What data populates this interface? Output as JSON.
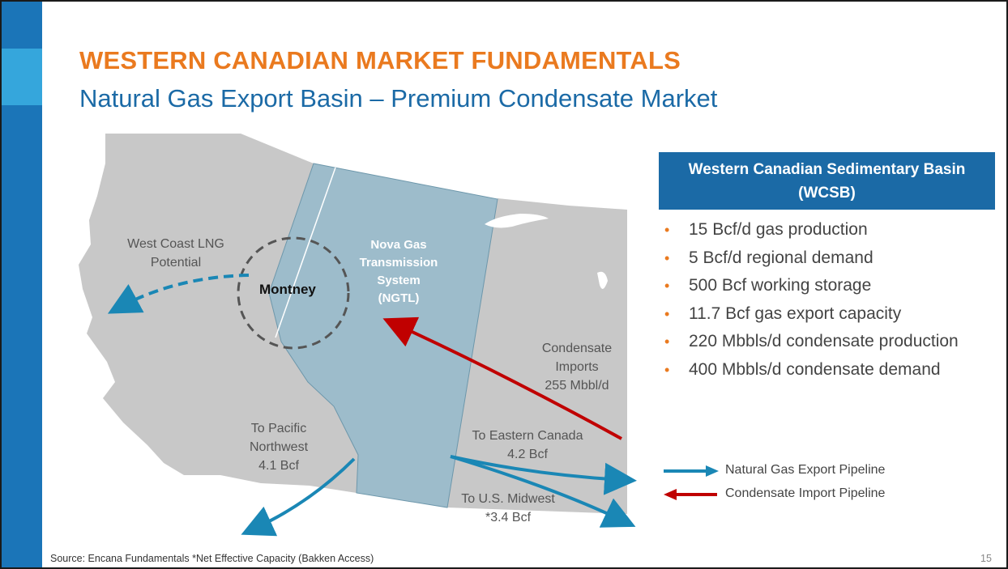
{
  "slide": {
    "title": "WESTERN CANADIAN MARKET FUNDAMENTALS",
    "subtitle": "Natural Gas Export Basin – Premium Condensate Market",
    "page_number": "15",
    "source_note": "Source: Encana Fundamentals *Net Effective Capacity (Bakken Access)"
  },
  "colors": {
    "brand_blue": "#1b6aa6",
    "accent_orange": "#ea7a1f",
    "export_arrow": "#1a87b5",
    "import_arrow": "#c00000",
    "map_gray": "#c8c8c8",
    "alberta_fill": "#9dbccb"
  },
  "map": {
    "west_coast_lng": [
      "West Coast LNG",
      "Potential"
    ],
    "montney": "Montney",
    "ngtl": [
      "Nova Gas",
      "Transmission",
      "System",
      "(NGTL)"
    ],
    "condensate_imports": [
      "Condensate",
      "Imports",
      "255 Mbbl/d"
    ],
    "pacific_northwest": [
      "To Pacific",
      "Northwest",
      "4.1 Bcf"
    ],
    "eastern_canada": [
      "To Eastern Canada",
      "4.2 Bcf"
    ],
    "us_midwest": [
      "To U.S. Midwest",
      "*3.4 Bcf"
    ]
  },
  "basin_box": {
    "line1": "Western Canadian Sedimentary Basin",
    "line2": "(WCSB)"
  },
  "facts": [
    "15 Bcf/d gas production",
    "5 Bcf/d regional demand",
    "500 Bcf working storage",
    "11.7 Bcf gas export capacity",
    "220 Mbbls/d condensate production",
    "400 Mbbls/d condensate demand"
  ],
  "legend": {
    "export": "Natural Gas  Export Pipeline",
    "import": "Condensate Import Pipeline"
  }
}
